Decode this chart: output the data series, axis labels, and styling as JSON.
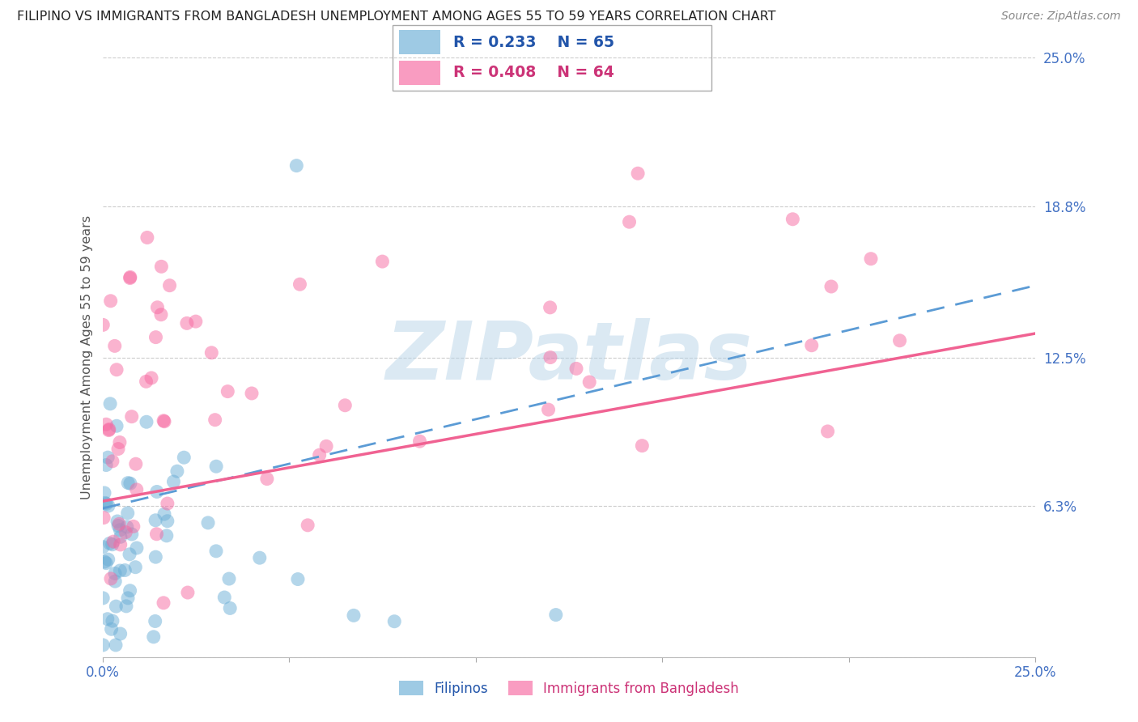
{
  "title": "FILIPINO VS IMMIGRANTS FROM BANGLADESH UNEMPLOYMENT AMONG AGES 55 TO 59 YEARS CORRELATION CHART",
  "source": "Source: ZipAtlas.com",
  "ylabel": "Unemployment Among Ages 55 to 59 years",
  "xlim": [
    0.0,
    0.25
  ],
  "ylim": [
    0.0,
    0.25
  ],
  "yticks": [
    0.0,
    0.063,
    0.125,
    0.188,
    0.25
  ],
  "ytick_labels": [
    "",
    "6.3%",
    "12.5%",
    "18.8%",
    "25.0%"
  ],
  "xticks": [
    0.0,
    0.05,
    0.1,
    0.15,
    0.2,
    0.25
  ],
  "xtick_labels": [
    "0.0%",
    "",
    "",
    "",
    "",
    "25.0%"
  ],
  "filipinos_R": 0.233,
  "filipinos_N": 65,
  "bangladesh_R": 0.408,
  "bangladesh_N": 64,
  "blue_color": "#6baed6",
  "pink_color": "#f768a1",
  "blue_line_color": "#5b9bd5",
  "pink_line_color": "#f06292",
  "legend_label_blue": "Filipinos",
  "legend_label_pink": "Immigrants from Bangladesh",
  "watermark": "ZIPatlas",
  "watermark_color": "#b8d4e8",
  "background_color": "#ffffff",
  "grid_color": "#cccccc",
  "title_color": "#222222",
  "axis_label_color": "#555555",
  "tick_color": "#4472c4",
  "blue_trend_start_y": 0.062,
  "blue_trend_end_y": 0.155,
  "pink_trend_start_y": 0.065,
  "pink_trend_end_y": 0.135
}
